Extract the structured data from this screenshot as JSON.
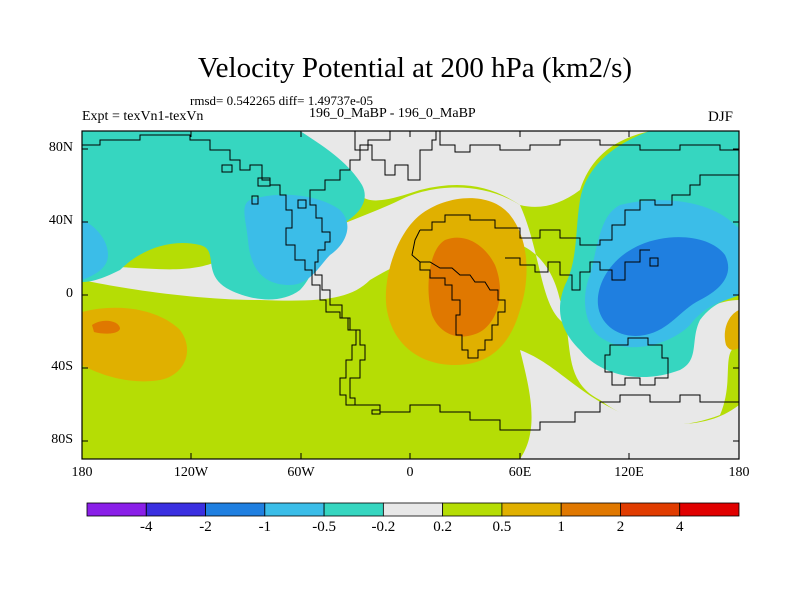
{
  "title": "Velocity Potential at 200 hPa (km2/s)",
  "stats_line": "rmsd= 0.542265 diff= 1.49737e-05",
  "experiment": "Expt = texVn1-texVn",
  "period": "196_0_MaBP - 196_0_MaBP",
  "season": "DJF",
  "lat_labels": [
    "80N",
    "40N",
    "0",
    "40S",
    "80S"
  ],
  "lon_labels": [
    "180",
    "120W",
    "60W",
    "0",
    "60E",
    "120E",
    "180"
  ],
  "colorbar": {
    "labels": [
      "-4",
      "-2",
      "-1",
      "-0.5",
      "-0.2",
      "0.2",
      "0.5",
      "1",
      "2",
      "4"
    ],
    "colors": [
      "#8a1fe8",
      "#3a2fe0",
      "#1f7fe0",
      "#3bbde8",
      "#36d6c0",
      "#e8e8e8",
      "#b5dd05",
      "#e0b000",
      "#e07800",
      "#e03c00",
      "#e00000"
    ]
  },
  "chart_data": {
    "type": "map",
    "variable": "velocity potential anomaly",
    "units": "km2/s",
    "level_hPa": 200,
    "domain": {
      "lon": [
        -180,
        180
      ],
      "lat": [
        -90,
        90
      ]
    },
    "contour_levels": [
      -4,
      -2,
      -1,
      -0.5,
      -0.2,
      0.2,
      0.5,
      1,
      2,
      4
    ],
    "features": [
      {
        "name": "eastern-hemisphere negative core",
        "lon": 155,
        "lat": 0,
        "value": -1.5
      },
      {
        "name": "western-hemisphere negative center",
        "lon": -80,
        "lat": 35,
        "value": -0.7
      },
      {
        "name": "africa positive core",
        "lon": 25,
        "lat": 0,
        "value": 1.2
      },
      {
        "name": "south pacific positive",
        "lon": -160,
        "lat": -20,
        "value": 0.7
      }
    ]
  }
}
